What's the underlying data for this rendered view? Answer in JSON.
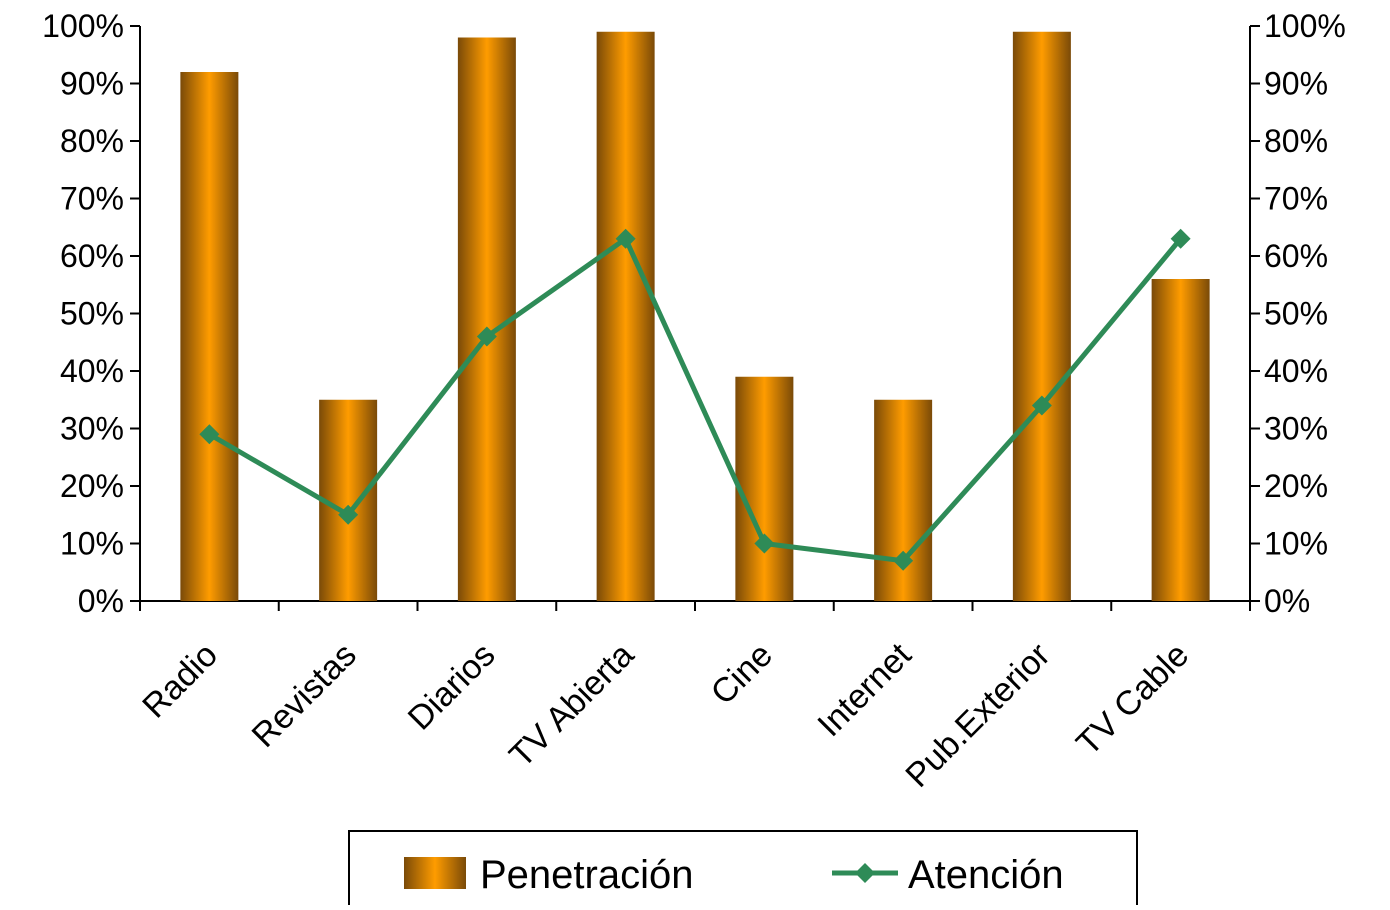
{
  "chart_data": {
    "type": "bar",
    "title": "",
    "categories": [
      "Radio",
      "Revistas",
      "Diarios",
      "TV Abierta",
      "Cine",
      "Internet",
      "Pub.Exterior",
      "TV Cable"
    ],
    "series": [
      {
        "name": "Penetración",
        "type": "bar",
        "axis": "left",
        "values": [
          92,
          35,
          98,
          99,
          39,
          35,
          99,
          56
        ]
      },
      {
        "name": "Atención",
        "type": "line",
        "axis": "right",
        "values": [
          29,
          15,
          46,
          63,
          10,
          7,
          34,
          63
        ]
      }
    ],
    "y_left": {
      "min": 0,
      "max": 100,
      "ticks": [
        "0%",
        "10%",
        "20%",
        "30%",
        "40%",
        "50%",
        "60%",
        "70%",
        "80%",
        "90%",
        "100%"
      ]
    },
    "y_right": {
      "min": 0,
      "max": 100,
      "ticks": [
        "0%",
        "10%",
        "20%",
        "30%",
        "40%",
        "50%",
        "60%",
        "70%",
        "80%",
        "90%",
        "100%"
      ]
    },
    "grid": false,
    "legend": "bottom",
    "colors": {
      "bar_edge": "#7a4a08",
      "bar_center": "#ff9c00",
      "line": "#2e8b57"
    }
  }
}
